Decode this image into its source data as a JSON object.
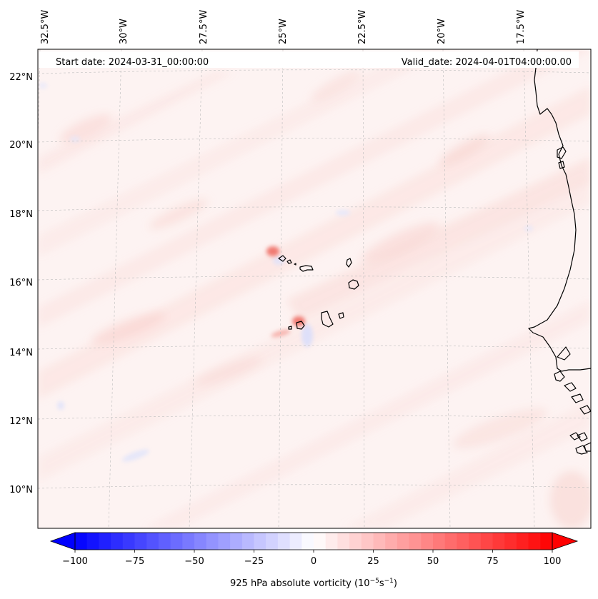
{
  "map": {
    "annotation_left": "Start date: 2024-03-31_00:00:00",
    "annotation_right": "Valid_date: 2024-04-01T04:00:00.00",
    "lon_ticks": [
      "32.5°W",
      "30°W",
      "27.5°W",
      "25°W",
      "22.5°W",
      "20°W",
      "17.5°W"
    ],
    "lat_ticks": [
      "22°N",
      "20°N",
      "18°N",
      "16°N",
      "14°N",
      "12°N",
      "10°N"
    ],
    "gridlines": true,
    "coastline_color": "#000000",
    "features": [
      {
        "name": "Cape Verde islands",
        "shown": "coastline outlines"
      },
      {
        "name": "West African coast",
        "shown": "coastline outline"
      }
    ],
    "field_description": "absolute vorticity field, mostly weak positive values (light red) with small strong maxima near the islands"
  },
  "colorbar": {
    "label": "925 hPa absolute vorticity (10",
    "label_sup1": "−5",
    "label_mid": "s",
    "label_sup2": "−1",
    "label_end": ")",
    "tick_labels": [
      "−100",
      "−75",
      "−50",
      "−25",
      "0",
      "25",
      "50",
      "75",
      "100"
    ],
    "min": -100,
    "max": 100,
    "levels": 40,
    "colormap": "bwr",
    "min_color": "#0000ff",
    "mid_color": "#ffffff",
    "max_color": "#ff0000",
    "extend": "both"
  }
}
